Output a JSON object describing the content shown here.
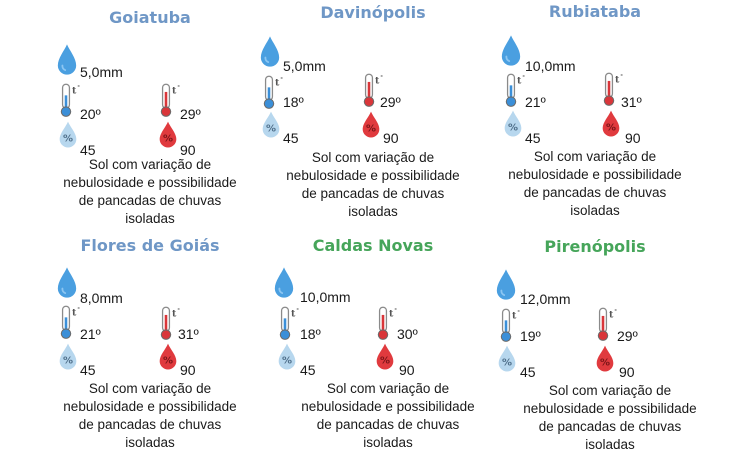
{
  "cities": [
    {
      "name": "Goiatuba",
      "rain": "5,0mm",
      "tmin": "20º",
      "tmax": "29º",
      "hum_min": "45",
      "hum_max": "90",
      "desc": [
        "Sol com variação de",
        "nebulosidade e possibilidade",
        "de pancadas de chuvas",
        "isoladas"
      ]
    },
    {
      "name": "Davinópolis",
      "rain": "5,0mm",
      "tmin": "18º",
      "tmax": "29º",
      "hum_min": "45",
      "hum_max": "90",
      "desc": [
        "Sol com variação de",
        "nebulosidade e possibilidade",
        "de pancadas de chuvas",
        "isoladas"
      ]
    },
    {
      "name": "Rubiataba",
      "rain": "10,0mm",
      "tmin": "21º",
      "tmax": "31º",
      "hum_min": "45",
      "hum_max": "90",
      "desc": [
        "Sol com variação de",
        "nebulosidade e possibilidade",
        "de pancadas de chuvas",
        "isoladas"
      ]
    },
    {
      "name": "Flores de Goiás",
      "rain": "8,0mm",
      "tmin": "21º",
      "tmax": "31º",
      "hum_min": "45",
      "hum_max": "90",
      "desc": [
        "Sol com variação de",
        "nebulosidade e possibilidade",
        "de pancadas de chuvas",
        "isoladas"
      ]
    },
    {
      "name": "Caldas Novas",
      "rain": "10,0mm",
      "tmin": "18º",
      "tmax": "30º",
      "hum_min": "45",
      "hum_max": "90",
      "desc": [
        "Sol com variação de",
        "nebulosidade e possibilidade",
        "de pancadas de chuvas",
        "isoladas"
      ]
    },
    {
      "name": "Pirenópolis",
      "rain": "12,0mm",
      "tmin": "19º",
      "tmax": "29º",
      "hum_min": "45",
      "hum_max": "90",
      "desc": [
        "Sol com variação de",
        "nebulosidade e possibilidade",
        "de pancadas de chuvas",
        "isoladas"
      ]
    }
  ],
  "icons": {
    "rain": "raindrop-icon",
    "tmin": "thermometer-cold-icon",
    "tmax": "thermometer-hot-icon",
    "hum_min": "humidity-low-icon",
    "hum_max": "humidity-high-icon"
  },
  "colors": {
    "title_blue": "#6f97c6",
    "title_green": "#46a55a",
    "drop_blue": "#4a9fe0",
    "therm_blue": "#3b8fd8",
    "therm_red": "#d9363a",
    "hum_light": "#b7d7ee",
    "hum_red": "#e03a3e"
  }
}
